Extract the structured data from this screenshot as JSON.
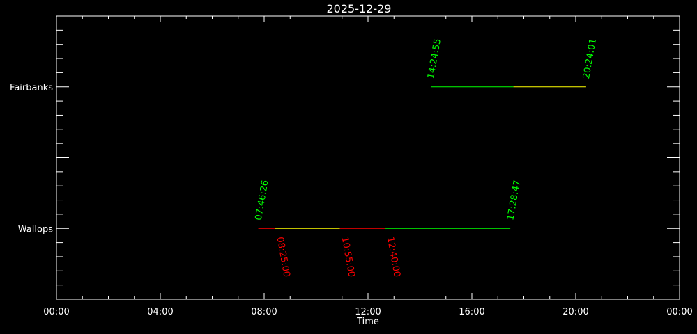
{
  "chart_data": {
    "type": "timeline",
    "title": "2025-12-29",
    "xlabel": "Time",
    "ylabel": "",
    "xlim": [
      "00:00",
      "24:00"
    ],
    "x_tick_labels": [
      "00:00",
      "04:00",
      "08:00",
      "12:00",
      "16:00",
      "20:00",
      "00:00"
    ],
    "categories": [
      "Wallops",
      "Fairbanks"
    ],
    "grid": false,
    "colors": {
      "background": "#000000",
      "axes": "#ffffff",
      "red": "#ff0000",
      "yellow": "#ffff00",
      "green": "#00ff00"
    },
    "series": [
      {
        "station": "Wallops",
        "segments": [
          {
            "start": "07:46:26",
            "end": "08:25:00",
            "color": "#ff0000"
          },
          {
            "start": "08:25:00",
            "end": "10:55:00",
            "color": "#ffff00"
          },
          {
            "start": "10:55:00",
            "end": "12:40:00",
            "color": "#ff0000"
          },
          {
            "start": "12:40:00",
            "end": "17:28:47",
            "color": "#00ff00"
          }
        ],
        "labels_above": [
          {
            "text": "07:46:26",
            "time": "07:46:26",
            "color": "#00ff00"
          },
          {
            "text": "17:28:47",
            "time": "17:28:47",
            "color": "#00ff00"
          }
        ],
        "labels_below": [
          {
            "text": "08:25:00",
            "time": "08:25:00",
            "color": "#ff0000"
          },
          {
            "text": "10:55:00",
            "time": "10:55:00",
            "color": "#ff0000"
          },
          {
            "text": "12:40:00",
            "time": "12:40:00",
            "color": "#ff0000"
          }
        ]
      },
      {
        "station": "Fairbanks",
        "segments": [
          {
            "start": "14:24:55",
            "end": "17:36:00",
            "color": "#00ff00"
          },
          {
            "start": "17:36:00",
            "end": "20:24:01",
            "color": "#ffff00"
          }
        ],
        "labels_above": [
          {
            "text": "14:24:55",
            "time": "14:24:55",
            "color": "#00ff00"
          },
          {
            "text": "20:24:01",
            "time": "20:24:01",
            "color": "#00ff00"
          }
        ],
        "labels_below": []
      }
    ]
  }
}
